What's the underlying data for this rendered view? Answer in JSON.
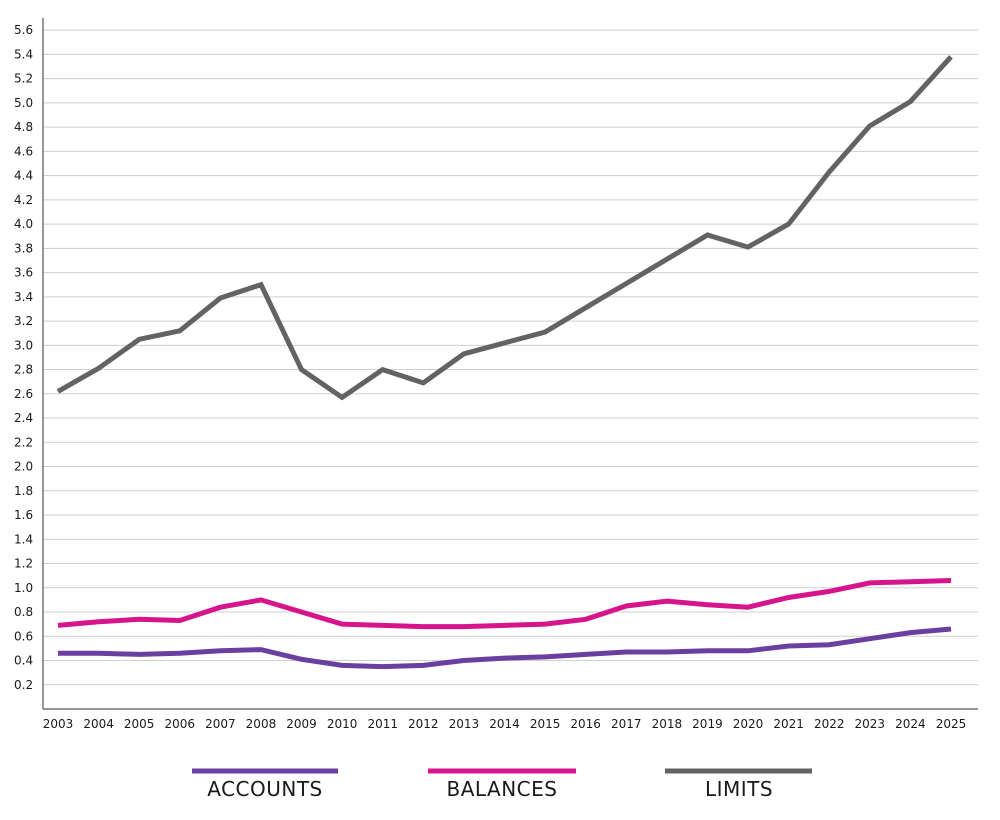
{
  "chart_data": {
    "type": "line",
    "title": "",
    "xlabel": "",
    "ylabel": "",
    "ylim": [
      0,
      5.7
    ],
    "y_ticks": [
      "0.2",
      "0.4",
      "0.6",
      "0.8",
      "1.0",
      "1.2",
      "1.4",
      "1.6",
      "1.8",
      "2.0",
      "2.2",
      "2.4",
      "2.6",
      "2.8",
      "3.0",
      "3.2",
      "3.4",
      "3.6",
      "3.8",
      "4.0",
      "4.2",
      "4.4",
      "4.6",
      "4.8",
      "5.0",
      "5.2",
      "5.4",
      "5.6"
    ],
    "x": [
      "2003",
      "2004",
      "2005",
      "2006",
      "2007",
      "2008",
      "2009",
      "2010",
      "2011",
      "2012",
      "2013",
      "2014",
      "2015",
      "2016",
      "2017",
      "2018",
      "2019",
      "2020",
      "2021",
      "2022",
      "2023",
      "2024",
      "2025"
    ],
    "grid": true,
    "legend_position": "bottom",
    "series": [
      {
        "name": "ACCOUNTS",
        "color": "#6a3fa0",
        "values": [
          0.46,
          0.46,
          0.45,
          0.46,
          0.48,
          0.49,
          0.41,
          0.36,
          0.35,
          0.36,
          0.4,
          0.42,
          0.43,
          0.45,
          0.47,
          0.47,
          0.48,
          0.48,
          0.52,
          0.53,
          0.58,
          0.63,
          0.66
        ]
      },
      {
        "name": "BALANCES",
        "color": "#d6148c",
        "values": [
          0.69,
          0.72,
          0.74,
          0.73,
          0.84,
          0.9,
          0.8,
          0.7,
          0.69,
          0.68,
          0.68,
          0.69,
          0.7,
          0.74,
          0.85,
          0.89,
          0.86,
          0.84,
          0.92,
          0.97,
          1.04,
          1.05,
          1.06
        ]
      },
      {
        "name": "LIMITS",
        "color": "#636366",
        "values": [
          2.62,
          2.81,
          3.05,
          3.12,
          3.39,
          3.5,
          2.8,
          2.57,
          2.8,
          2.69,
          2.93,
          3.02,
          3.11,
          3.31,
          3.51,
          3.71,
          3.91,
          3.81,
          4.0,
          4.43,
          4.81,
          5.01,
          5.38
        ]
      }
    ]
  }
}
